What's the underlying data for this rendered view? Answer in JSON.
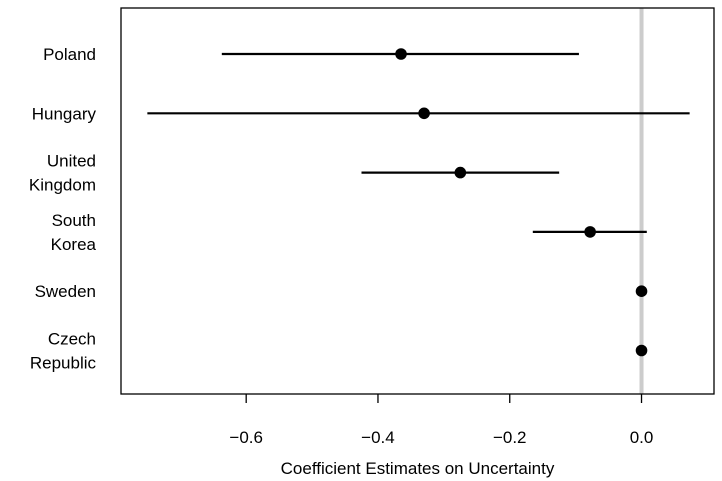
{
  "chart_data": {
    "type": "coefficient-plot",
    "title": "",
    "xlabel": "Coefficient Estimates on Uncertainty",
    "ylabel": "",
    "xlim": [
      -0.79,
      0.11
    ],
    "x_ticks": [
      -0.6,
      -0.4,
      -0.2,
      0.0
    ],
    "x_tick_labels": [
      "−0.6",
      "−0.4",
      "−0.2",
      "0.0"
    ],
    "reference_line": 0.0,
    "reference_line_color": "#cccccc",
    "point_color": "#000000",
    "grid": false,
    "legend": "none",
    "categories": [
      {
        "label_lines": [
          "Poland"
        ],
        "estimate": -0.365,
        "ci_low": -0.637,
        "ci_high": -0.095
      },
      {
        "label_lines": [
          "Hungary"
        ],
        "estimate": -0.33,
        "ci_low": -0.75,
        "ci_high": 0.073
      },
      {
        "label_lines": [
          "United",
          "Kingdom"
        ],
        "estimate": -0.275,
        "ci_low": -0.425,
        "ci_high": -0.125
      },
      {
        "label_lines": [
          "South",
          "Korea"
        ],
        "estimate": -0.078,
        "ci_low": -0.165,
        "ci_high": 0.008
      },
      {
        "label_lines": [
          "Sweden"
        ],
        "estimate": 0.0,
        "ci_low": 0.0,
        "ci_high": 0.0
      },
      {
        "label_lines": [
          "Czech",
          "Republic"
        ],
        "estimate": 0.0,
        "ci_low": 0.0,
        "ci_high": 0.0
      }
    ]
  }
}
